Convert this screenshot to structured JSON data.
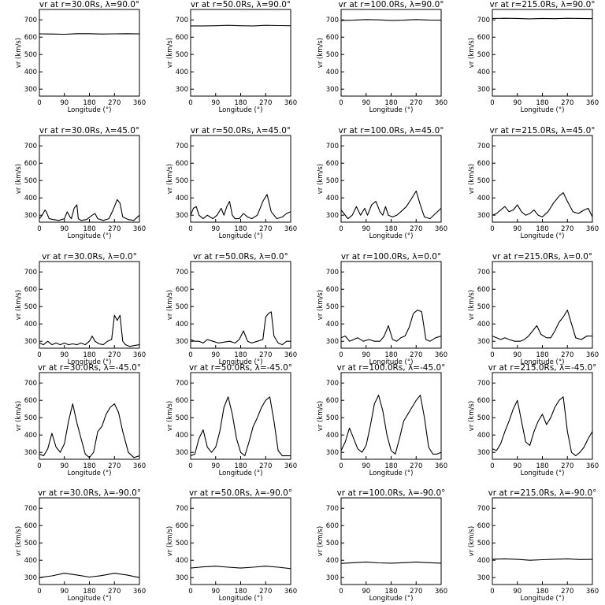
{
  "figure": {
    "shared_x": {
      "label": "Longitude (°)",
      "ticks": [
        "0",
        "90",
        "180",
        "270",
        "360"
      ],
      "range": [
        0,
        360
      ]
    },
    "shared_y": {
      "label": "vr (km/s)",
      "ticks": [
        "300",
        "400",
        "500",
        "600",
        "700"
      ],
      "range": [
        260,
        760
      ]
    },
    "line_color": "#000000"
  },
  "chart_data": [
    {
      "type": "line",
      "title": "vr at r=30.0Rs, λ=90.0°",
      "row": 0,
      "col": 0,
      "xlabel": "Longitude (°)",
      "ylabel": "vr (km/s)",
      "xlim": [
        0,
        360
      ],
      "ylim": [
        260,
        760
      ],
      "x": [
        0,
        45,
        90,
        135,
        180,
        225,
        270,
        315,
        360
      ],
      "y": [
        619,
        618,
        617,
        620,
        620,
        618,
        619,
        620,
        619
      ]
    },
    {
      "type": "line",
      "title": "vr at r=50.0Rs, λ=90.0°",
      "row": 0,
      "col": 1,
      "xlabel": "Longitude (°)",
      "ylabel": "vr (km/s)",
      "xlim": [
        0,
        360
      ],
      "ylim": [
        260,
        760
      ],
      "x": [
        0,
        45,
        90,
        135,
        180,
        225,
        270,
        315,
        360
      ],
      "y": [
        665,
        665,
        666,
        668,
        666,
        665,
        668,
        667,
        666
      ]
    },
    {
      "type": "line",
      "title": "vr at r=100.0Rs, λ=90.0°",
      "row": 0,
      "col": 2,
      "xlabel": "Longitude (°)",
      "ylabel": "vr (km/s)",
      "xlim": [
        0,
        360
      ],
      "ylim": [
        260,
        760
      ],
      "x": [
        0,
        45,
        90,
        135,
        180,
        225,
        270,
        315,
        360
      ],
      "y": [
        697,
        698,
        702,
        700,
        697,
        698,
        702,
        699,
        698
      ]
    },
    {
      "type": "line",
      "title": "vr at r=215.0Rs, λ=90.0°",
      "row": 0,
      "col": 3,
      "xlabel": "Longitude (°)",
      "ylabel": "vr (km/s)",
      "xlim": [
        0,
        360
      ],
      "ylim": [
        260,
        760
      ],
      "x": [
        0,
        45,
        90,
        135,
        180,
        225,
        270,
        315,
        360
      ],
      "y": [
        708,
        709,
        708,
        706,
        708,
        707,
        709,
        708,
        707
      ]
    },
    {
      "type": "line",
      "title": "vr at r=30.0Rs, λ=45.0°",
      "row": 1,
      "col": 0,
      "xlabel": "Longitude (°)",
      "ylabel": "vr (km/s)",
      "xlim": [
        0,
        360
      ],
      "ylim": [
        260,
        760
      ],
      "x": [
        0,
        10,
        20,
        25,
        35,
        50,
        70,
        90,
        100,
        110,
        115,
        125,
        135,
        140,
        150,
        170,
        190,
        200,
        210,
        230,
        250,
        265,
        280,
        290,
        300,
        320,
        340,
        360
      ],
      "y": [
        280,
        300,
        330,
        320,
        280,
        275,
        270,
        280,
        320,
        290,
        280,
        340,
        360,
        280,
        270,
        275,
        300,
        310,
        280,
        270,
        280,
        330,
        390,
        370,
        290,
        275,
        270,
        300
      ]
    },
    {
      "type": "line",
      "title": "vr at r=50.0Rs, λ=45.0°",
      "row": 1,
      "col": 1,
      "xlabel": "Longitude (°)",
      "ylabel": "vr (km/s)",
      "xlim": [
        0,
        360
      ],
      "ylim": [
        260,
        760
      ],
      "x": [
        0,
        10,
        20,
        30,
        45,
        60,
        80,
        95,
        110,
        120,
        130,
        140,
        150,
        160,
        175,
        190,
        205,
        220,
        240,
        260,
        275,
        290,
        310,
        330,
        345,
        360
      ],
      "y": [
        300,
        340,
        350,
        300,
        280,
        300,
        280,
        300,
        340,
        300,
        350,
        380,
        300,
        280,
        280,
        310,
        290,
        280,
        300,
        380,
        420,
        320,
        280,
        290,
        310,
        320
      ]
    },
    {
      "type": "line",
      "title": "vr at r=100.0Rs, λ=45.0°",
      "row": 1,
      "col": 2,
      "xlabel": "Longitude (°)",
      "ylabel": "vr (km/s)",
      "xlim": [
        0,
        360
      ],
      "ylim": [
        260,
        760
      ],
      "x": [
        0,
        10,
        25,
        40,
        55,
        70,
        85,
        95,
        110,
        125,
        140,
        150,
        160,
        170,
        185,
        200,
        215,
        235,
        255,
        270,
        285,
        300,
        320,
        340,
        360
      ],
      "y": [
        330,
        310,
        280,
        300,
        350,
        300,
        340,
        300,
        360,
        380,
        320,
        300,
        350,
        300,
        290,
        300,
        320,
        350,
        400,
        440,
        360,
        290,
        280,
        310,
        340
      ]
    },
    {
      "type": "line",
      "title": "vr at r=215.0Rs, λ=45.0°",
      "row": 1,
      "col": 3,
      "xlabel": "Longitude (°)",
      "ylabel": "vr (km/s)",
      "xlim": [
        0,
        360
      ],
      "ylim": [
        260,
        760
      ],
      "x": [
        0,
        15,
        30,
        45,
        60,
        75,
        90,
        105,
        120,
        135,
        150,
        165,
        180,
        200,
        220,
        240,
        255,
        270,
        290,
        310,
        330,
        345,
        360
      ],
      "y": [
        300,
        310,
        330,
        350,
        320,
        330,
        360,
        320,
        300,
        310,
        330,
        300,
        290,
        320,
        370,
        410,
        430,
        380,
        320,
        310,
        330,
        340,
        290
      ]
    },
    {
      "type": "line",
      "title": "vr at r=30.0Rs, λ=0.0°",
      "row": 2,
      "col": 0,
      "xlabel": "Longitude (°)",
      "ylabel": "vr (km/s)",
      "xlim": [
        0,
        360
      ],
      "ylim": [
        260,
        760
      ],
      "x": [
        0,
        15,
        30,
        45,
        60,
        75,
        90,
        105,
        120,
        135,
        150,
        165,
        180,
        190,
        200,
        215,
        230,
        245,
        260,
        270,
        280,
        290,
        300,
        310,
        325,
        340,
        360
      ],
      "y": [
        290,
        280,
        300,
        280,
        290,
        280,
        290,
        280,
        285,
        280,
        290,
        280,
        300,
        330,
        300,
        285,
        280,
        300,
        310,
        450,
        420,
        450,
        300,
        280,
        270,
        275,
        280
      ]
    },
    {
      "type": "line",
      "title": "vr at r=50.0Rs, λ=0.0°",
      "row": 2,
      "col": 1,
      "xlabel": "Longitude (°)",
      "ylabel": "vr (km/s)",
      "xlim": [
        0,
        360
      ],
      "ylim": [
        260,
        760
      ],
      "x": [
        0,
        15,
        30,
        45,
        60,
        80,
        100,
        120,
        140,
        160,
        175,
        190,
        205,
        220,
        240,
        260,
        270,
        280,
        290,
        300,
        315,
        330,
        345,
        360
      ],
      "y": [
        310,
        300,
        300,
        290,
        310,
        300,
        290,
        295,
        300,
        290,
        310,
        360,
        300,
        290,
        300,
        310,
        440,
        460,
        470,
        330,
        290,
        280,
        300,
        300
      ]
    },
    {
      "type": "line",
      "title": "vr at r=100.0Rs, λ=0.0°",
      "row": 2,
      "col": 2,
      "xlabel": "Longitude (°)",
      "ylabel": "vr (km/s)",
      "xlim": [
        0,
        360
      ],
      "ylim": [
        260,
        760
      ],
      "x": [
        0,
        15,
        30,
        45,
        60,
        80,
        100,
        120,
        140,
        155,
        170,
        185,
        200,
        215,
        230,
        245,
        260,
        275,
        290,
        305,
        320,
        340,
        360
      ],
      "y": [
        320,
        330,
        300,
        310,
        320,
        300,
        310,
        300,
        300,
        330,
        390,
        310,
        300,
        320,
        330,
        380,
        460,
        480,
        470,
        310,
        300,
        320,
        330
      ]
    },
    {
      "type": "line",
      "title": "vr at r=215.0Rs, λ=0.0°",
      "row": 2,
      "col": 3,
      "xlabel": "Longitude (°)",
      "ylabel": "vr (km/s)",
      "xlim": [
        0,
        360
      ],
      "ylim": [
        260,
        760
      ],
      "x": [
        0,
        15,
        30,
        45,
        60,
        80,
        100,
        115,
        130,
        145,
        160,
        175,
        195,
        210,
        225,
        240,
        255,
        270,
        285,
        300,
        320,
        340,
        360
      ],
      "y": [
        330,
        320,
        310,
        320,
        310,
        300,
        300,
        310,
        330,
        360,
        390,
        340,
        320,
        320,
        360,
        410,
        440,
        480,
        400,
        320,
        310,
        330,
        330
      ]
    },
    {
      "type": "line",
      "title": "vr at r=30.0Rs, λ=-45.0°",
      "row": 3,
      "col": 0,
      "xlabel": "Longitude (°)",
      "ylabel": "vr (km/s)",
      "xlim": [
        0,
        360
      ],
      "ylim": [
        260,
        760
      ],
      "x": [
        0,
        15,
        30,
        45,
        60,
        75,
        90,
        105,
        120,
        135,
        150,
        165,
        180,
        195,
        210,
        225,
        240,
        255,
        270,
        285,
        300,
        320,
        340,
        360
      ],
      "y": [
        290,
        280,
        320,
        410,
        330,
        300,
        350,
        480,
        580,
        470,
        380,
        290,
        270,
        300,
        420,
        450,
        520,
        560,
        580,
        530,
        420,
        300,
        270,
        280
      ]
    },
    {
      "type": "line",
      "title": "vr at r=50.0Rs, λ=-45.0°",
      "row": 3,
      "col": 1,
      "xlabel": "Longitude (°)",
      "ylabel": "vr (km/s)",
      "xlim": [
        0,
        360
      ],
      "ylim": [
        260,
        760
      ],
      "x": [
        0,
        15,
        30,
        45,
        60,
        75,
        90,
        105,
        120,
        135,
        150,
        165,
        180,
        195,
        210,
        225,
        240,
        255,
        270,
        285,
        300,
        315,
        330,
        345,
        360
      ],
      "y": [
        280,
        290,
        380,
        430,
        330,
        300,
        330,
        420,
        560,
        620,
        520,
        380,
        300,
        280,
        360,
        450,
        500,
        560,
        600,
        620,
        480,
        310,
        280,
        280,
        280
      ]
    },
    {
      "type": "line",
      "title": "vr at r=100.0Rs, λ=-45.0°",
      "row": 3,
      "col": 2,
      "xlabel": "Longitude (°)",
      "ylabel": "vr (km/s)",
      "xlim": [
        0,
        360
      ],
      "ylim": [
        260,
        760
      ],
      "x": [
        0,
        15,
        30,
        45,
        60,
        75,
        90,
        105,
        120,
        135,
        150,
        165,
        180,
        195,
        210,
        225,
        240,
        255,
        270,
        285,
        300,
        315,
        330,
        345,
        360
      ],
      "y": [
        310,
        360,
        440,
        380,
        320,
        300,
        340,
        450,
        580,
        630,
        540,
        400,
        310,
        290,
        380,
        480,
        520,
        560,
        600,
        630,
        500,
        330,
        290,
        290,
        300
      ]
    },
    {
      "type": "line",
      "title": "vr at r=215.0Rs, λ=-45.0°",
      "row": 3,
      "col": 3,
      "xlabel": "Longitude (°)",
      "ylabel": "vr (km/s)",
      "xlim": [
        0,
        360
      ],
      "ylim": [
        260,
        760
      ],
      "x": [
        0,
        15,
        30,
        45,
        60,
        75,
        90,
        105,
        120,
        135,
        150,
        165,
        180,
        195,
        210,
        225,
        240,
        255,
        270,
        285,
        300,
        315,
        330,
        345,
        360
      ],
      "y": [
        320,
        310,
        350,
        420,
        480,
        550,
        600,
        480,
        360,
        340,
        420,
        480,
        520,
        460,
        500,
        560,
        600,
        620,
        420,
        300,
        280,
        300,
        330,
        380,
        420
      ]
    },
    {
      "type": "line",
      "title": "vr at r=30.0Rs, λ=-90.0°",
      "row": 4,
      "col": 0,
      "xlabel": "Longitude (°)",
      "ylabel": "vr (km/s)",
      "xlim": [
        0,
        360
      ],
      "ylim": [
        260,
        760
      ],
      "x": [
        0,
        45,
        90,
        135,
        180,
        225,
        270,
        315,
        360
      ],
      "y": [
        300,
        310,
        325,
        315,
        303,
        312,
        325,
        315,
        300
      ]
    },
    {
      "type": "line",
      "title": "vr at r=50.0Rs, λ=-90.0°",
      "row": 4,
      "col": 1,
      "xlabel": "Longitude (°)",
      "ylabel": "vr (km/s)",
      "xlim": [
        0,
        360
      ],
      "ylim": [
        260,
        760
      ],
      "x": [
        0,
        45,
        90,
        135,
        180,
        225,
        270,
        315,
        360
      ],
      "y": [
        355,
        362,
        366,
        360,
        355,
        360,
        366,
        360,
        352
      ]
    },
    {
      "type": "line",
      "title": "vr at r=100.0Rs, λ=-90.0°",
      "row": 4,
      "col": 2,
      "xlabel": "Longitude (°)",
      "ylabel": "vr (km/s)",
      "xlim": [
        0,
        360
      ],
      "ylim": [
        260,
        760
      ],
      "x": [
        0,
        45,
        90,
        135,
        180,
        225,
        270,
        315,
        360
      ],
      "y": [
        382,
        386,
        390,
        385,
        383,
        386,
        390,
        386,
        383
      ]
    },
    {
      "type": "line",
      "title": "vr at r=215.0Rs, λ=-90.0°",
      "row": 4,
      "col": 3,
      "xlabel": "Longitude (°)",
      "ylabel": "vr (km/s)",
      "xlim": [
        0,
        360
      ],
      "ylim": [
        260,
        760
      ],
      "x": [
        0,
        45,
        90,
        135,
        180,
        225,
        270,
        315,
        360
      ],
      "y": [
        406,
        408,
        405,
        400,
        403,
        406,
        408,
        404,
        405
      ]
    }
  ]
}
